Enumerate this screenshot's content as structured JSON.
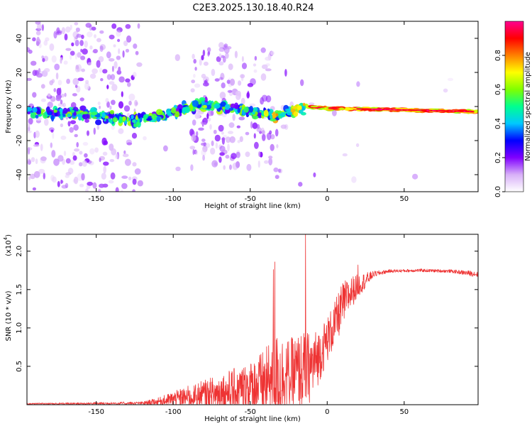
{
  "title": "C2E3.2025.130.18.40.R24",
  "chart_data": [
    {
      "type": "heatmap",
      "xlabel": "Height of straight line (km)",
      "ylabel": "Frequency (Hz)",
      "xlim": [
        -195,
        98
      ],
      "ylim": [
        -50,
        50
      ],
      "xticks": [
        -150,
        -100,
        -50,
        0,
        50
      ],
      "yticks": [
        -40,
        -20,
        0,
        20,
        40
      ],
      "colorbar": {
        "label": "Normalized spectral amplitude",
        "range": [
          0,
          1
        ],
        "ticks": [
          "0.0",
          "0.2",
          "0.4",
          "0.6",
          "0.8"
        ],
        "tick_values": [
          0,
          0.2,
          0.4,
          0.6,
          0.8
        ],
        "colors": [
          "#ffffff",
          "#d8b0f8",
          "#8000ff",
          "#0000ff",
          "#00c8ff",
          "#00ff90",
          "#80ff00",
          "#ffff00",
          "#ff8000",
          "#ff0000",
          "#ff0090"
        ]
      },
      "ridge": {
        "description": "dominant line near 0 Hz",
        "points_x_km": [
          -195,
          -170,
          -150,
          -130,
          -110,
          -95,
          -85,
          -70,
          -50,
          -35,
          -25,
          -15,
          0,
          50,
          95
        ],
        "points_freq_hz": [
          -3,
          -4,
          -5,
          -8,
          -6,
          -2,
          1,
          0,
          -3,
          -5,
          -3,
          0,
          -1,
          -2,
          -3
        ]
      },
      "peak_amplitude_range_km": [
        -15,
        95
      ]
    },
    {
      "type": "line",
      "xlabel": "Height of straight line (km)",
      "ylabel": "SNR (10 * v/v)",
      "y_multiplier_label": "(x10",
      "y_multiplier_exp": "4",
      "y_multiplier_close": ")",
      "xlim": [
        -195,
        98
      ],
      "ylim": [
        0,
        2.22
      ],
      "xticks": [
        -150,
        -100,
        -50,
        0,
        50
      ],
      "yticks": [
        0.5,
        1.0,
        1.5,
        2.0
      ],
      "ytick_labels": [
        "0.5",
        "1.0",
        "1.5",
        "2.0"
      ],
      "series": [
        {
          "name": "SNR",
          "color": "#ee3333",
          "envelope_x": [
            -195,
            -120,
            -110,
            -100,
            -90,
            -80,
            -70,
            -60,
            -50,
            -40,
            -35,
            -30,
            -25,
            -20,
            -15,
            -10,
            -5,
            0,
            5,
            10,
            15,
            20,
            25,
            30,
            40,
            60,
            80,
            98
          ],
          "envelope_mean": [
            0.01,
            0.02,
            0.04,
            0.07,
            0.1,
            0.12,
            0.15,
            0.18,
            0.22,
            0.28,
            0.33,
            0.37,
            0.4,
            0.42,
            0.45,
            0.5,
            0.65,
            0.85,
            1.05,
            1.3,
            1.45,
            1.55,
            1.62,
            1.7,
            1.74,
            1.75,
            1.74,
            1.7
          ],
          "envelope_spread": [
            0.01,
            0.02,
            0.05,
            0.1,
            0.15,
            0.2,
            0.25,
            0.3,
            0.35,
            0.45,
            0.6,
            0.55,
            0.45,
            0.5,
            0.5,
            0.45,
            0.35,
            0.3,
            0.3,
            0.3,
            0.22,
            0.15,
            0.1,
            0.04,
            0.02,
            0.02,
            0.02,
            0.04
          ],
          "spikes": [
            {
              "x": -35,
              "y": 1.76
            },
            {
              "x": -34,
              "y": 1.86
            },
            {
              "x": -14,
              "y": 2.22
            },
            {
              "x": 20,
              "y": 1.82
            }
          ]
        }
      ]
    }
  ]
}
